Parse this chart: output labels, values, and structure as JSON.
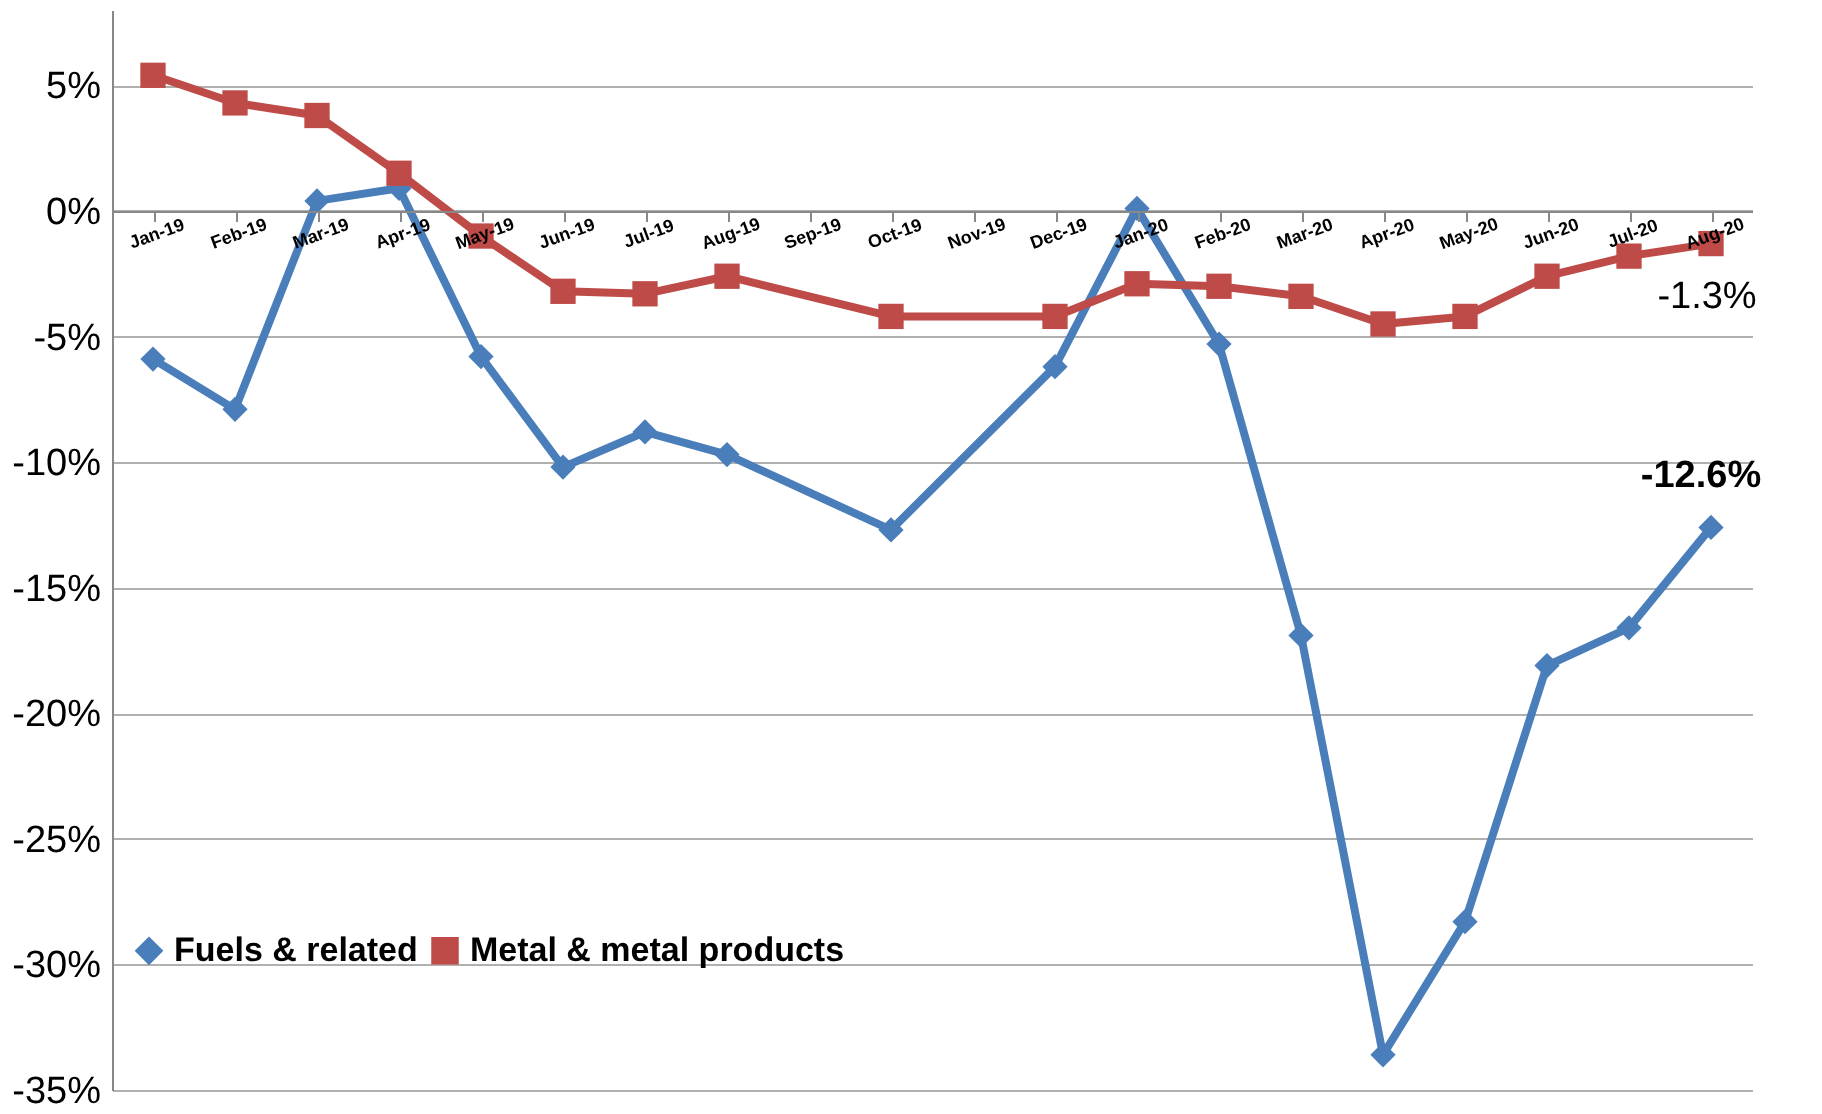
{
  "chart_data": {
    "type": "line",
    "categories": [
      "Jan-19",
      "Feb-19",
      "Mar-19",
      "Apr-19",
      "May-19",
      "Jun-19",
      "Jul-19",
      "Aug-19",
      "Sep-19",
      "Oct-19",
      "Nov-19",
      "Dec-19",
      "Jan-20",
      "Feb-20",
      "Mar-20",
      "Apr-20",
      "May-20",
      "Jun-20",
      "Jul-20",
      "Aug-20"
    ],
    "series": [
      {
        "name": "Fuels & related",
        "color": "#4a7ebb",
        "marker": "diamond",
        "values": [
          -5.9,
          -7.9,
          0.4,
          0.9,
          -5.8,
          -10.2,
          -8.8,
          -9.7,
          null,
          -12.7,
          null,
          -6.2,
          0.1,
          -5.3,
          -16.9,
          -33.6,
          -28.3,
          -18.1,
          -16.6,
          -12.6
        ]
      },
      {
        "name": "Metal & metal products",
        "color": "#be4b48",
        "marker": "square",
        "values": [
          5.4,
          4.3,
          3.8,
          1.5,
          -1.0,
          -3.2,
          -3.3,
          -2.6,
          null,
          -4.2,
          null,
          -4.2,
          -2.9,
          -3.0,
          -3.4,
          -4.5,
          -4.2,
          -2.6,
          -1.8,
          -1.3
        ]
      }
    ],
    "ylim": [
      -35,
      8
    ],
    "yticks": [
      {
        "value": -35,
        "label": "-35%"
      },
      {
        "value": -30,
        "label": "-30%"
      },
      {
        "value": -25,
        "label": "-25%"
      },
      {
        "value": -20,
        "label": "-20%"
      },
      {
        "value": -15,
        "label": "-15%"
      },
      {
        "value": -10,
        "label": "-10%"
      },
      {
        "value": -5,
        "label": "-5%"
      },
      {
        "value": 0,
        "label": "0%"
      },
      {
        "value": 5,
        "label": "5%"
      }
    ],
    "annotations": [
      {
        "text": "-1.3%",
        "x": "Aug-20",
        "y": -1.3
      },
      {
        "text": "-12.6%",
        "x": "Aug-20",
        "y": -12.6
      }
    ],
    "grid": "y",
    "legend": "bottom left",
    "line_style": "solid"
  }
}
